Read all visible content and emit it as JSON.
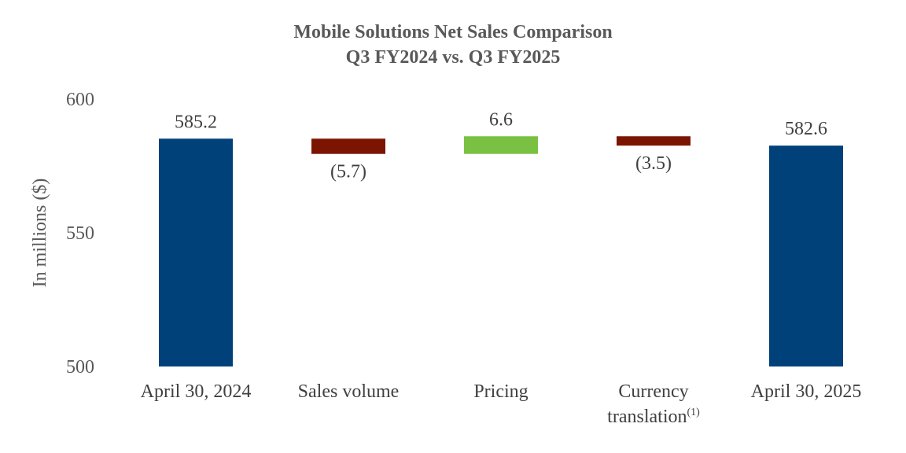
{
  "chart_data": {
    "type": "bar",
    "subtype": "waterfall",
    "title": "Mobile Solutions Net Sales Comparison",
    "subtitle": "Q3 FY2024 vs. Q3 FY2025",
    "ylabel": "In millions ($)",
    "ylim": [
      500,
      600
    ],
    "yticks": [
      500,
      550,
      600
    ],
    "grid": false,
    "colors": {
      "total": "#00417A",
      "decrease": "#7B1502",
      "increase": "#7AC143"
    },
    "categories": [
      {
        "label": "April 30, 2024",
        "label_lines": [
          "April 30, 2024"
        ],
        "kind": "total",
        "value": 585.2,
        "data_label": "585.2"
      },
      {
        "label": "Sales volume",
        "label_lines": [
          "Sales volume"
        ],
        "kind": "decrease",
        "value": -5.7,
        "data_label": "(5.7)"
      },
      {
        "label": "Pricing",
        "label_lines": [
          "Pricing"
        ],
        "kind": "increase",
        "value": 6.6,
        "data_label": "6.6"
      },
      {
        "label": "Currency translation(1)",
        "label_lines": [
          "Currency",
          "translation"
        ],
        "label_superscript": "(1)",
        "kind": "decrease",
        "value": -3.5,
        "data_label": "(3.5)"
      },
      {
        "label": "April 30, 2025",
        "label_lines": [
          "April 30, 2025"
        ],
        "kind": "total",
        "value": 582.6,
        "data_label": "582.6"
      }
    ]
  }
}
